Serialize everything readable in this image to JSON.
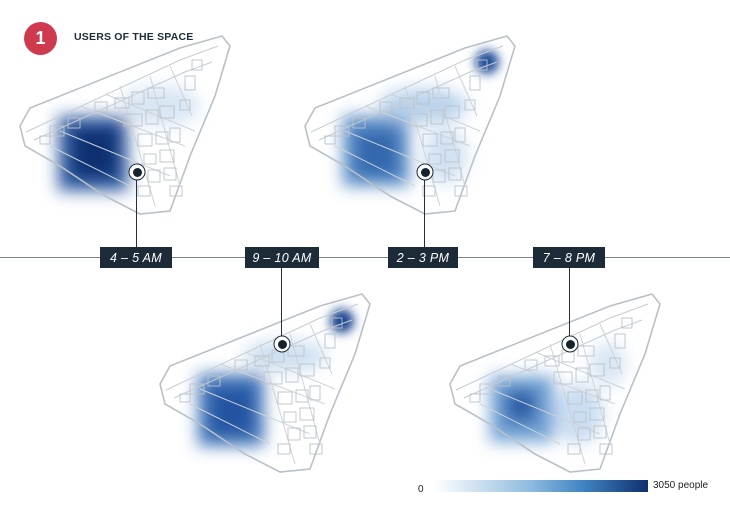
{
  "header": {
    "badge_number": "1",
    "title": "USERS OF THE SPACE"
  },
  "time_slots": [
    {
      "label": "4 – 5 AM"
    },
    {
      "label": "9 – 10 AM"
    },
    {
      "label": "2 – 3 PM"
    },
    {
      "label": "7 – 8 PM"
    }
  ],
  "legend": {
    "min_label": "0",
    "max_label": "3050 people",
    "colors": [
      "#ffffff",
      "#cfe1f0",
      "#8fbbe0",
      "#3f83c2",
      "#102f70"
    ]
  },
  "colors": {
    "accent": "#cf3a4f",
    "label_bg": "#1d2b38",
    "heat_high": "#0f2a68",
    "heat_mid": "#3a7fc0",
    "heat_low": "#bcd6ee"
  }
}
